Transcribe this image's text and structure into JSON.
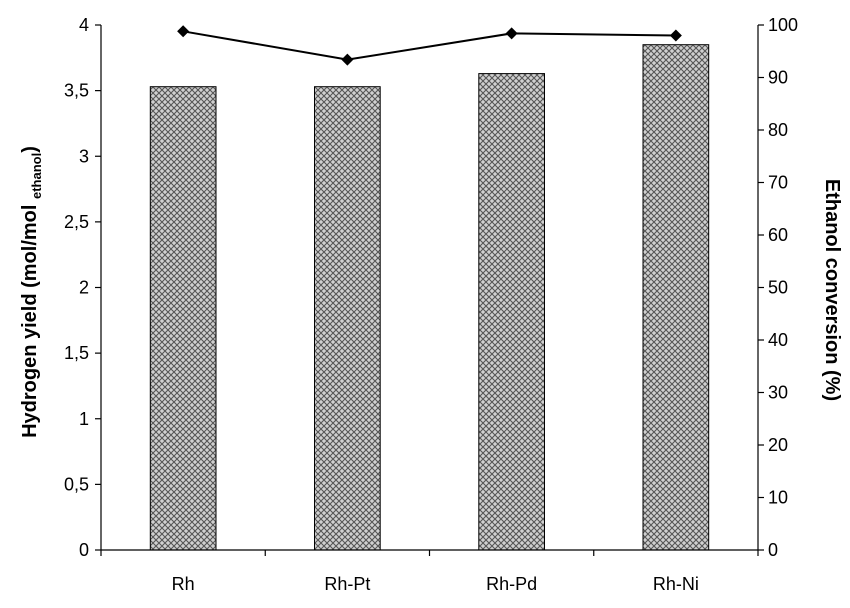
{
  "chart_data": {
    "type": "bar",
    "categories": [
      "Rh",
      "Rh-Pt",
      "Rh-Pd",
      "Rh-Ni"
    ],
    "series": [
      {
        "axis": "left",
        "type": "bar",
        "values": [
          3.53,
          3.53,
          3.63,
          3.85
        ]
      },
      {
        "axis": "right",
        "type": "line",
        "marker": "diamond",
        "values": [
          98.8,
          93.4,
          98.4,
          98.0
        ]
      }
    ],
    "y_left": {
      "label_main": "Hydrogen yield (mol/mol ",
      "label_sub": "ethanol",
      "label_end": ")",
      "range": [
        0,
        4
      ],
      "ticks": [
        "0",
        "0,5",
        "1",
        "1,5",
        "2",
        "2,5",
        "3",
        "3,5",
        "4"
      ]
    },
    "y_right": {
      "label": "Ethanol conversion (%)",
      "range": [
        0,
        100
      ],
      "ticks": [
        "0",
        "10",
        "20",
        "30",
        "40",
        "50",
        "60",
        "70",
        "80",
        "90",
        "100"
      ]
    },
    "grid": false,
    "legend": "none",
    "colors": {
      "bar_fill": "#c8c8c8",
      "bar_pattern": "#555555",
      "line": "#000000",
      "marker": "#000000"
    }
  }
}
